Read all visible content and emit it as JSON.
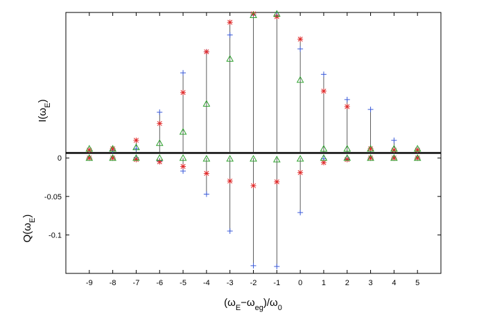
{
  "chart_data": {
    "type": "scatter",
    "title": "",
    "xlabel": "(ωE−ωeg)/ω0",
    "top_panel": {
      "ylabel": "I(ωE)",
      "y_tick_labels_shown": false,
      "ylim": [
        0,
        1.0
      ],
      "series": [
        {
          "marker": "plus",
          "color": "#3a5ad9",
          "x": [
            -9,
            -8,
            -7,
            -6,
            -5,
            -4,
            -3,
            -2,
            -1,
            0,
            1,
            2,
            3,
            4,
            5
          ],
          "values": [
            0.02,
            0.02,
            0.03,
            0.29,
            0.57,
            0.72,
            0.84,
            0.98,
            0.98,
            0.74,
            0.56,
            0.38,
            0.31,
            0.09,
            0.02
          ]
        },
        {
          "marker": "asterisk",
          "color": "#e02a2a",
          "x": [
            -9,
            -8,
            -7,
            -6,
            -5,
            -4,
            -3,
            -2,
            -1,
            0,
            1,
            2,
            3,
            4,
            5
          ],
          "values": [
            0.02,
            0.03,
            0.09,
            0.21,
            0.43,
            0.72,
            0.93,
            0.99,
            0.97,
            0.81,
            0.44,
            0.33,
            0.03,
            0.02,
            0.02
          ]
        },
        {
          "marker": "triangle",
          "color": "#2ca02c",
          "x": [
            -9,
            -8,
            -7,
            -6,
            -5,
            -4,
            -3,
            -2,
            -1,
            0,
            1,
            2,
            3,
            4,
            5
          ],
          "values": [
            0.03,
            0.03,
            0.04,
            0.07,
            0.15,
            0.35,
            0.67,
            0.98,
            0.99,
            0.52,
            0.03,
            0.03,
            0.03,
            0.03,
            0.03
          ]
        }
      ]
    },
    "bottom_panel": {
      "ylabel": "Q(ωE)",
      "ylim": [
        -0.15,
        0.0065
      ],
      "y_ticks": [
        0,
        -0.05,
        -0.1
      ],
      "y_tick_labels": [
        "0",
        "-0.05",
        "-0.1"
      ],
      "series": [
        {
          "marker": "plus",
          "color": "#3a5ad9",
          "x": [
            -9,
            -8,
            -7,
            -6,
            -5,
            -4,
            -3,
            -2,
            -1,
            0,
            1,
            2,
            3,
            4,
            5
          ],
          "values": [
            0,
            0,
            0,
            -0.004,
            -0.017,
            -0.047,
            -0.095,
            -0.14,
            -0.141,
            -0.071,
            -0.001,
            -0.001,
            0,
            0,
            0
          ]
        },
        {
          "marker": "asterisk",
          "color": "#e02a2a",
          "x": [
            -9,
            -8,
            -7,
            -6,
            -5,
            -4,
            -3,
            -2,
            -1,
            0,
            1,
            2,
            3,
            4,
            5
          ],
          "values": [
            0,
            0,
            -0.002,
            -0.005,
            -0.011,
            -0.02,
            -0.03,
            -0.036,
            -0.031,
            -0.019,
            -0.006,
            -0.002,
            0,
            0,
            0
          ]
        },
        {
          "marker": "triangle",
          "color": "#2ca02c",
          "x": [
            -9,
            -8,
            -7,
            -6,
            -5,
            -4,
            -3,
            -2,
            -1,
            0,
            1,
            2,
            3,
            4,
            5
          ],
          "values": [
            0,
            0,
            0,
            0,
            0,
            -0.001,
            -0.001,
            -0.001,
            -0.002,
            -0.001,
            0,
            0,
            0,
            0,
            0
          ]
        }
      ]
    },
    "x_ticks": [
      -9,
      -8,
      -7,
      -6,
      -5,
      -4,
      -3,
      -2,
      -1,
      0,
      1,
      2,
      3,
      4,
      5
    ],
    "x_tick_labels": [
      "-9",
      "-8",
      "-7",
      "-6",
      "-5",
      "-4",
      "-3",
      "-2",
      "-1",
      "0",
      "1",
      "2",
      "3",
      "4",
      "5"
    ],
    "xlim": [
      -10,
      6
    ],
    "grid": false,
    "stems": true,
    "legend": "none"
  }
}
